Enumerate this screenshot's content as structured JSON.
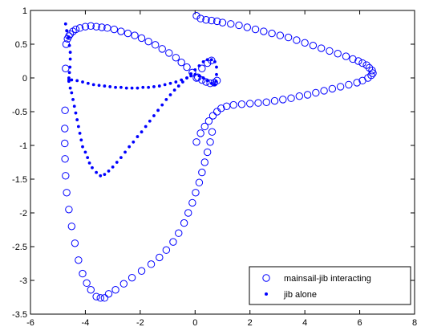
{
  "chart_data": {
    "type": "scatter",
    "xlim": [
      -6,
      8
    ],
    "ylim": [
      -3.5,
      1
    ],
    "xticks": [
      -6,
      -4,
      -2,
      0,
      2,
      4,
      6,
      8
    ],
    "xtick_labels": [
      "-6",
      "-4",
      "-2",
      "0",
      "2",
      "4",
      "6",
      "8"
    ],
    "yticks": [
      -3.5,
      -3,
      -2.5,
      -2,
      -1.5,
      -1,
      -0.5,
      0,
      0.5,
      1
    ],
    "ytick_labels": [
      "-3.5",
      "-3",
      "-2.5",
      "-2",
      "-1.5",
      "-1",
      "-0.5",
      "0",
      "0.5",
      "1"
    ],
    "grid": false,
    "legend_position": "bottom-right",
    "colors": {
      "series": "#0000ff",
      "axes": "#000000"
    },
    "series": [
      {
        "name": "mainsail-jib interacting",
        "marker": "open-circle",
        "points": [
          [
            0.05,
            0.92
          ],
          [
            0.2,
            0.88
          ],
          [
            0.4,
            0.86
          ],
          [
            0.6,
            0.85
          ],
          [
            0.8,
            0.84
          ],
          [
            1.0,
            0.82
          ],
          [
            1.3,
            0.8
          ],
          [
            1.6,
            0.78
          ],
          [
            1.9,
            0.75
          ],
          [
            2.2,
            0.72
          ],
          [
            2.5,
            0.69
          ],
          [
            2.8,
            0.66
          ],
          [
            3.1,
            0.63
          ],
          [
            3.4,
            0.6
          ],
          [
            3.7,
            0.56
          ],
          [
            4.0,
            0.52
          ],
          [
            4.3,
            0.48
          ],
          [
            4.6,
            0.44
          ],
          [
            4.9,
            0.4
          ],
          [
            5.2,
            0.36
          ],
          [
            5.5,
            0.32
          ],
          [
            5.75,
            0.28
          ],
          [
            5.95,
            0.25
          ],
          [
            6.1,
            0.22
          ],
          [
            6.25,
            0.19
          ],
          [
            6.35,
            0.15
          ],
          [
            6.45,
            0.11
          ],
          [
            6.48,
            0.07
          ],
          [
            6.42,
            0.04
          ],
          [
            6.3,
            -0.0
          ],
          [
            6.1,
            -0.04
          ],
          [
            5.9,
            -0.07
          ],
          [
            5.6,
            -0.1
          ],
          [
            5.3,
            -0.13
          ],
          [
            5.0,
            -0.16
          ],
          [
            4.7,
            -0.19
          ],
          [
            4.4,
            -0.22
          ],
          [
            4.1,
            -0.25
          ],
          [
            3.8,
            -0.27
          ],
          [
            3.5,
            -0.3
          ],
          [
            3.2,
            -0.32
          ],
          [
            2.9,
            -0.34
          ],
          [
            2.6,
            -0.36
          ],
          [
            2.3,
            -0.37
          ],
          [
            2.0,
            -0.38
          ],
          [
            1.7,
            -0.39
          ],
          [
            1.4,
            -0.4
          ],
          [
            1.15,
            -0.42
          ],
          [
            0.95,
            -0.45
          ],
          [
            0.8,
            -0.5
          ],
          [
            0.65,
            -0.56
          ],
          [
            0.5,
            -0.64
          ],
          [
            0.35,
            -0.72
          ],
          [
            0.2,
            -0.82
          ],
          [
            0.05,
            -0.95
          ],
          [
            0.62,
            -0.8
          ],
          [
            0.55,
            -0.95
          ],
          [
            0.45,
            -1.1
          ],
          [
            0.35,
            -1.25
          ],
          [
            0.25,
            -1.4
          ],
          [
            0.15,
            -1.55
          ],
          [
            0.02,
            -1.7
          ],
          [
            -0.1,
            -1.85
          ],
          [
            -0.25,
            -2.0
          ],
          [
            -0.4,
            -2.15
          ],
          [
            -0.6,
            -2.3
          ],
          [
            -0.8,
            -2.43
          ],
          [
            -1.05,
            -2.55
          ],
          [
            -1.3,
            -2.66
          ],
          [
            -1.6,
            -2.76
          ],
          [
            -1.95,
            -2.86
          ],
          [
            -2.3,
            -2.96
          ],
          [
            -2.6,
            -3.05
          ],
          [
            -2.9,
            -3.14
          ],
          [
            -3.15,
            -3.2
          ],
          [
            -3.3,
            -3.26
          ],
          [
            -3.45,
            -3.26
          ],
          [
            -3.6,
            -3.24
          ],
          [
            -3.8,
            -3.14
          ],
          [
            -3.95,
            -3.04
          ],
          [
            -4.1,
            -2.9
          ],
          [
            -4.25,
            -2.7
          ],
          [
            -4.38,
            -2.45
          ],
          [
            -4.5,
            -2.2
          ],
          [
            -4.6,
            -1.95
          ],
          [
            -4.68,
            -1.7
          ],
          [
            -4.72,
            -1.45
          ],
          [
            -4.74,
            -1.2
          ],
          [
            -4.75,
            -0.97
          ],
          [
            -4.75,
            -0.75
          ],
          [
            -4.74,
            -0.48
          ],
          [
            -4.72,
            0.14
          ],
          [
            -4.7,
            0.5
          ],
          [
            -4.65,
            0.58
          ],
          [
            -4.6,
            0.62
          ],
          [
            -4.55,
            0.65
          ],
          [
            -4.45,
            0.69
          ],
          [
            -4.35,
            0.72
          ],
          [
            -4.2,
            0.74
          ],
          [
            -4.0,
            0.76
          ],
          [
            -3.8,
            0.77
          ],
          [
            -3.6,
            0.76
          ],
          [
            -3.4,
            0.75
          ],
          [
            -3.2,
            0.74
          ],
          [
            -2.95,
            0.72
          ],
          [
            -2.7,
            0.69
          ],
          [
            -2.45,
            0.66
          ],
          [
            -2.2,
            0.63
          ],
          [
            -1.95,
            0.59
          ],
          [
            -1.7,
            0.54
          ],
          [
            -1.45,
            0.49
          ],
          [
            -1.2,
            0.43
          ],
          [
            -0.95,
            0.37
          ],
          [
            -0.7,
            0.3
          ],
          [
            -0.5,
            0.23
          ],
          [
            -0.3,
            0.16
          ],
          [
            -0.1,
            0.08
          ],
          [
            0.1,
            0.01
          ],
          [
            0.25,
            -0.03
          ],
          [
            0.4,
            -0.06
          ],
          [
            0.55,
            -0.08
          ],
          [
            0.7,
            -0.07
          ],
          [
            0.8,
            -0.04
          ],
          [
            0.05,
            0.0
          ],
          [
            0.25,
            0.14
          ],
          [
            0.45,
            0.22
          ],
          [
            0.6,
            0.26
          ]
        ]
      },
      {
        "name": "jib alone",
        "marker": "dot",
        "points": [
          [
            -4.72,
            0.8
          ],
          [
            -4.68,
            0.7
          ],
          [
            -4.62,
            0.6
          ],
          [
            -4.58,
            0.48
          ],
          [
            -4.55,
            0.38
          ],
          [
            -4.55,
            0.28
          ],
          [
            -4.56,
            0.16
          ],
          [
            -4.58,
            0.08
          ],
          [
            -4.6,
            0.0
          ],
          [
            -4.6,
            -0.05
          ],
          [
            -4.55,
            -0.15
          ],
          [
            -4.5,
            -0.22
          ],
          [
            -4.45,
            -0.32
          ],
          [
            -4.4,
            -0.42
          ],
          [
            -4.35,
            -0.52
          ],
          [
            -4.3,
            -0.62
          ],
          [
            -4.25,
            -0.72
          ],
          [
            -4.2,
            -0.82
          ],
          [
            -4.15,
            -0.92
          ],
          [
            -4.1,
            -1.02
          ],
          [
            -4.0,
            -1.1
          ],
          [
            -3.92,
            -1.18
          ],
          [
            -3.85,
            -1.26
          ],
          [
            -3.75,
            -1.33
          ],
          [
            -3.6,
            -1.4
          ],
          [
            -3.45,
            -1.45
          ],
          [
            -3.3,
            -1.43
          ],
          [
            -3.15,
            -1.38
          ],
          [
            -3.0,
            -1.32
          ],
          [
            -2.85,
            -1.25
          ],
          [
            -2.7,
            -1.18
          ],
          [
            -2.55,
            -1.1
          ],
          [
            -2.4,
            -1.02
          ],
          [
            -2.25,
            -0.95
          ],
          [
            -2.1,
            -0.87
          ],
          [
            -1.95,
            -0.8
          ],
          [
            -1.8,
            -0.72
          ],
          [
            -1.65,
            -0.64
          ],
          [
            -1.5,
            -0.56
          ],
          [
            -1.35,
            -0.48
          ],
          [
            -1.2,
            -0.4
          ],
          [
            -1.05,
            -0.32
          ],
          [
            -0.9,
            -0.25
          ],
          [
            -0.75,
            -0.18
          ],
          [
            -0.6,
            -0.12
          ],
          [
            -0.45,
            -0.06
          ],
          [
            -0.3,
            -0.0
          ],
          [
            -0.15,
            0.06
          ],
          [
            0.0,
            0.12
          ],
          [
            0.15,
            0.18
          ],
          [
            0.3,
            0.24
          ],
          [
            0.45,
            0.27
          ],
          [
            0.6,
            0.27
          ],
          [
            0.72,
            0.24
          ],
          [
            0.78,
            0.16
          ],
          [
            0.78,
            0.05
          ],
          [
            0.76,
            -0.05
          ],
          [
            0.72,
            -0.1
          ],
          [
            0.6,
            -0.08
          ],
          [
            0.45,
            -0.04
          ],
          [
            0.3,
            0.0
          ],
          [
            0.15,
            0.03
          ],
          [
            0.0,
            0.05
          ],
          [
            -0.15,
            0.03
          ],
          [
            -0.3,
            0.0
          ],
          [
            -0.5,
            -0.03
          ],
          [
            -0.7,
            -0.06
          ],
          [
            -0.9,
            -0.08
          ],
          [
            -1.1,
            -0.1
          ],
          [
            -1.3,
            -0.12
          ],
          [
            -1.5,
            -0.13
          ],
          [
            -1.7,
            -0.14
          ],
          [
            -1.9,
            -0.14
          ],
          [
            -2.1,
            -0.15
          ],
          [
            -2.3,
            -0.15
          ],
          [
            -2.5,
            -0.15
          ],
          [
            -2.7,
            -0.14
          ],
          [
            -2.9,
            -0.14
          ],
          [
            -3.1,
            -0.13
          ],
          [
            -3.3,
            -0.12
          ],
          [
            -3.5,
            -0.11
          ],
          [
            -3.7,
            -0.1
          ],
          [
            -3.9,
            -0.08
          ],
          [
            -4.1,
            -0.06
          ],
          [
            -4.3,
            -0.04
          ],
          [
            -4.5,
            -0.03
          ],
          [
            -4.6,
            -0.03
          ]
        ]
      }
    ]
  }
}
